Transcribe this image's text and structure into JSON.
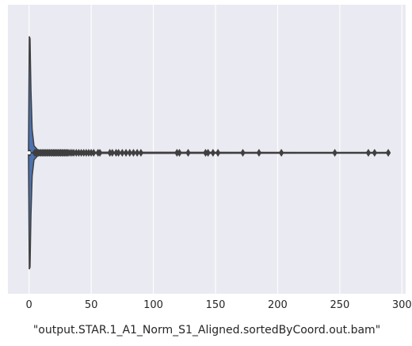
{
  "chart_data": {
    "type": "violin",
    "orientation": "horizontal",
    "title": "",
    "xlabel": "\"output.STAR.1_A1_Norm_S1_Aligned.sortedByCoord.out.bam\"",
    "ylabel": "",
    "xlim": [
      -17,
      303
    ],
    "xticks": [
      0,
      50,
      100,
      150,
      200,
      250,
      300
    ],
    "xtick_labels": [
      "0",
      "50",
      "100",
      "150",
      "200",
      "250",
      "300"
    ],
    "grid": true,
    "background": "#eaeaf2",
    "violin_color": "#4c72b0",
    "line_color": "#3f3f3f",
    "summary": {
      "min": 0,
      "q1": 0,
      "median": 0,
      "q3": 0,
      "whisker_high": 289
    },
    "violin_profile": [
      [
        -0.5,
        0.0
      ],
      [
        -0.2,
        0.4
      ],
      [
        0.2,
        1.0
      ],
      [
        0.8,
        0.98
      ],
      [
        1.5,
        0.55
      ],
      [
        2.5,
        0.2
      ],
      [
        4,
        0.06
      ],
      [
        7,
        0.025
      ],
      [
        10,
        0.012
      ],
      [
        20,
        0.005
      ],
      [
        289,
        0.003
      ]
    ],
    "outliers": [
      4.5,
      5.5,
      6.5,
      7.5,
      8.5,
      9.5,
      10.5,
      11.5,
      12.5,
      13.5,
      14.5,
      15.5,
      16.5,
      17.5,
      18.5,
      19.5,
      20.5,
      21.5,
      22.5,
      23.5,
      24.5,
      25.5,
      26.5,
      27.5,
      28.5,
      29.5,
      30.5,
      31.5,
      33,
      34.5,
      36,
      38,
      40,
      42,
      44,
      46,
      48,
      50,
      52,
      55.5,
      57,
      65,
      67,
      70,
      72,
      75,
      78,
      81,
      84,
      87,
      90,
      119,
      121,
      128,
      142,
      144,
      148,
      152,
      172,
      185,
      203,
      246,
      273,
      278,
      289
    ]
  }
}
